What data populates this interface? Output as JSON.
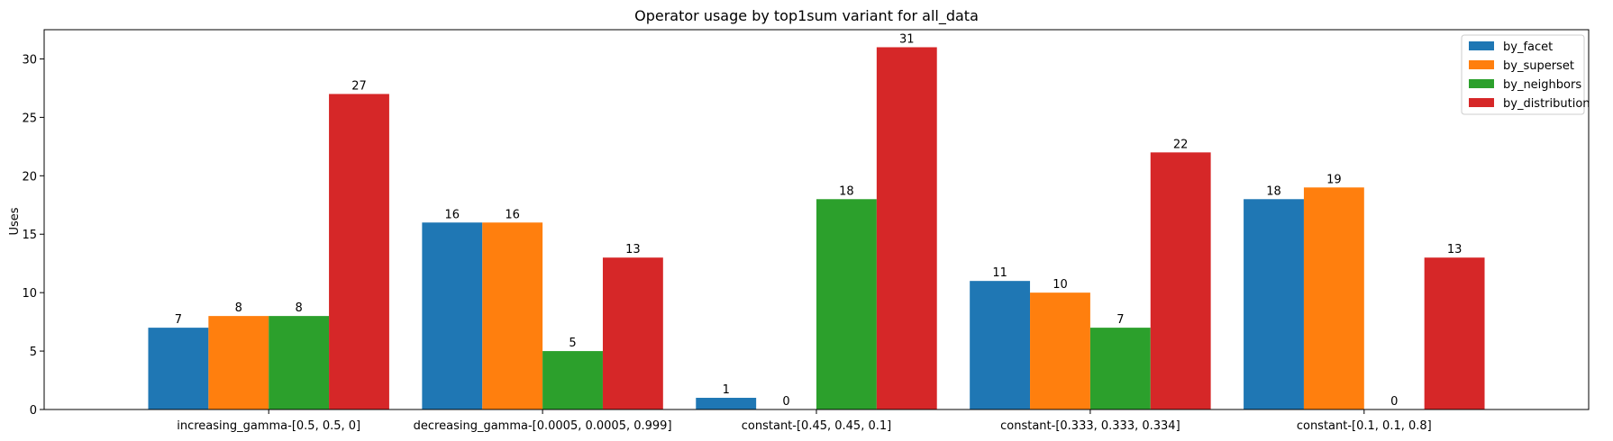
{
  "chart_data": {
    "type": "bar",
    "title": "Operator usage by top1sum variant for all_data",
    "xlabel": "",
    "ylabel": "Uses",
    "ylim": [
      0,
      32.5
    ],
    "yticks": [
      0,
      5,
      10,
      15,
      20,
      25,
      30
    ],
    "grid": false,
    "legend_position": "top-right",
    "categories": [
      "increasing_gamma-[0.5, 0.5, 0]",
      "decreasing_gamma-[0.0005, 0.0005, 0.999]",
      "constant-[0.45, 0.45, 0.1]",
      "constant-[0.333, 0.333, 0.334]",
      "constant-[0.1, 0.1, 0.8]"
    ],
    "series": [
      {
        "name": "by_facet",
        "color": "#1f77b4",
        "values": [
          7,
          16,
          1,
          11,
          18
        ]
      },
      {
        "name": "by_superset",
        "color": "#ff7f0e",
        "values": [
          8,
          16,
          0,
          10,
          19
        ]
      },
      {
        "name": "by_neighbors",
        "color": "#2ca02c",
        "values": [
          8,
          5,
          18,
          7,
          0
        ]
      },
      {
        "name": "by_distribution",
        "color": "#d62728",
        "values": [
          27,
          13,
          31,
          22,
          13
        ]
      }
    ]
  }
}
